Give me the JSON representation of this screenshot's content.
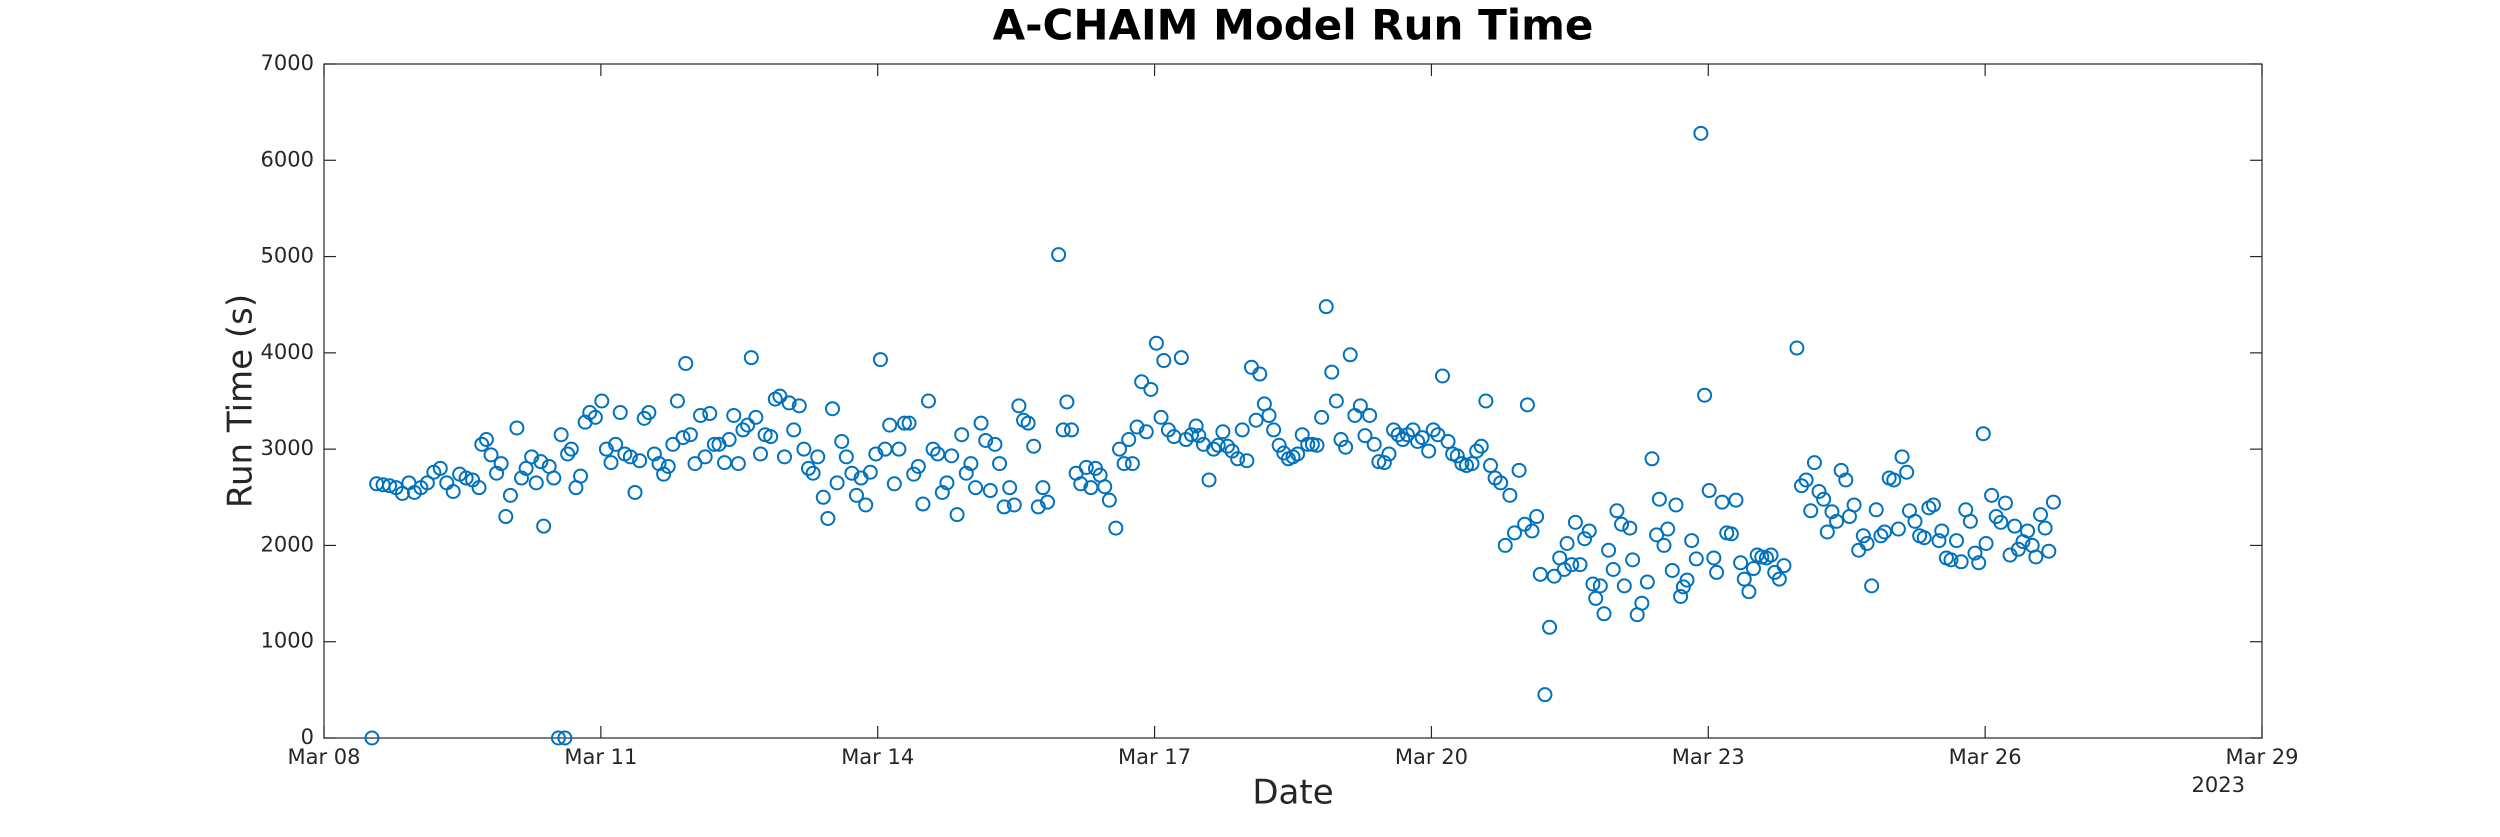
{
  "chart_data": {
    "type": "scatter",
    "title": "A-CHAIM Model Run Time",
    "x_label": "Date",
    "y_label": "Run Time (s)",
    "x_year_label": "2023",
    "color": "#0072bd",
    "xlim": [
      8,
      29
    ],
    "xticks": [
      {
        "value": 8,
        "label": "Mar 08"
      },
      {
        "value": 11,
        "label": "Mar 11"
      },
      {
        "value": 14,
        "label": "Mar 14"
      },
      {
        "value": 17,
        "label": "Mar 17"
      },
      {
        "value": 20,
        "label": "Mar 20"
      },
      {
        "value": 23,
        "label": "Mar 23"
      },
      {
        "value": 26,
        "label": "Mar 26"
      },
      {
        "value": 29,
        "label": "Mar 29"
      }
    ],
    "ylim": [
      0,
      7000
    ],
    "yticks": [
      0,
      1000,
      2000,
      3000,
      4000,
      5000,
      6000,
      7000
    ],
    "grid": false,
    "x": [
      8.52,
      8.57,
      8.64,
      8.71,
      8.78,
      8.85,
      8.92,
      8.98,
      9.05,
      9.12,
      9.19,
      9.26,
      9.33,
      9.4,
      9.47,
      9.54,
      9.61,
      9.68,
      9.71,
      9.76,
      9.81,
      9.87,
      9.92,
      9.97,
      10.02,
      10.09,
      10.14,
      10.19,
      10.25,
      10.3,
      10.35,
      10.38,
      10.44,
      10.49,
      10.54,
      10.57,
      10.61,
      10.64,
      10.68,
      10.73,
      10.78,
      10.83,
      10.88,
      10.94,
      11.01,
      11.06,
      11.11,
      11.16,
      11.21,
      11.26,
      11.32,
      11.37,
      11.42,
      11.47,
      11.52,
      11.58,
      11.63,
      11.68,
      11.73,
      11.78,
      11.83,
      11.89,
      11.92,
      11.97,
      12.02,
      12.08,
      12.13,
      12.18,
      12.23,
      12.28,
      12.34,
      12.39,
      12.44,
      12.49,
      12.54,
      12.59,
      12.63,
      12.68,
      12.73,
      12.78,
      12.84,
      12.89,
      12.94,
      12.99,
      13.04,
      13.09,
      13.15,
      13.2,
      13.25,
      13.3,
      13.35,
      13.41,
      13.46,
      13.51,
      13.56,
      13.61,
      13.66,
      13.72,
      13.77,
      13.82,
      13.87,
      13.92,
      13.98,
      14.03,
      14.08,
      14.13,
      14.18,
      14.23,
      14.29,
      14.34,
      14.39,
      14.44,
      14.49,
      14.55,
      14.6,
      14.65,
      14.7,
      14.75,
      14.8,
      14.86,
      14.91,
      14.96,
      15.01,
      15.06,
      15.12,
      15.17,
      15.22,
      15.27,
      15.32,
      15.37,
      15.43,
      15.48,
      15.53,
      15.58,
      15.63,
      15.69,
      15.74,
      15.79,
      15.84,
      15.96,
      16.01,
      16.05,
      16.1,
      16.15,
      16.2,
      16.26,
      16.31,
      16.36,
      16.41,
      16.46,
      16.51,
      16.58,
      16.62,
      16.67,
      16.72,
      16.76,
      16.81,
      16.86,
      16.91,
      16.96,
      17.02,
      17.07,
      17.1,
      17.15,
      17.21,
      17.29,
      17.34,
      17.4,
      17.45,
      17.48,
      17.53,
      17.59,
      17.64,
      17.69,
      17.74,
      17.79,
      17.84,
      17.9,
      17.95,
      18.0,
      18.05,
      18.1,
      18.14,
      18.19,
      18.24,
      18.29,
      18.35,
      18.4,
      18.45,
      18.5,
      18.55,
      18.6,
      18.66,
      18.71,
      18.76,
      18.81,
      18.86,
      18.92,
      18.97,
      19.02,
      19.07,
      19.12,
      19.17,
      19.23,
      19.28,
      19.33,
      19.38,
      19.43,
      19.49,
      19.54,
      19.59,
      19.64,
      19.69,
      19.74,
      19.8,
      19.85,
      19.9,
      19.97,
      20.02,
      20.07,
      20.12,
      20.18,
      20.23,
      20.28,
      20.33,
      20.38,
      20.44,
      20.49,
      20.54,
      20.59,
      20.64,
      20.69,
      20.75,
      20.8,
      20.85,
      20.9,
      20.95,
      21.01,
      21.04,
      21.09,
      21.14,
      21.18,
      21.23,
      21.28,
      21.33,
      21.39,
      21.44,
      21.47,
      21.52,
      21.56,
      21.61,
      21.66,
      21.71,
      21.75,
      21.78,
      21.83,
      21.87,
      21.92,
      21.97,
      22.01,
      22.06,
      22.09,
      22.15,
      22.18,
      22.23,
      22.28,
      22.34,
      22.39,
      22.44,
      22.47,
      22.52,
      22.56,
      22.61,
      22.65,
      22.7,
      22.73,
      22.77,
      22.82,
      22.87,
      22.92,
      22.96,
      23.01,
      23.06,
      23.09,
      23.15,
      23.2,
      23.25,
      23.3,
      23.35,
      23.39,
      23.44,
      23.49,
      23.53,
      23.58,
      23.63,
      23.68,
      23.72,
      23.77,
      23.82,
      23.96,
      24.01,
      24.06,
      24.11,
      24.15,
      24.2,
      24.25,
      24.29,
      24.34,
      24.39,
      24.44,
      24.49,
      24.53,
      24.58,
      24.63,
      24.68,
      24.72,
      24.77,
      24.82,
      24.87,
      24.91,
      24.96,
      25.01,
      25.06,
      25.1,
      25.15,
      25.18,
      25.24,
      25.29,
      25.34,
      25.39,
      25.44,
      25.5,
      25.53,
      25.58,
      25.63,
      25.69,
      25.74,
      25.79,
      25.84,
      25.89,
      25.93,
      25.98,
      26.01,
      26.07,
      26.12,
      26.17,
      26.22,
      26.27,
      26.32,
      26.36,
      26.41,
      26.46,
      26.51,
      26.55,
      26.6,
      26.65,
      26.69,
      26.74
    ],
    "values": [
      0,
      2640,
      2630,
      2620,
      2600,
      2540,
      2650,
      2550,
      2600,
      2650,
      2760,
      2800,
      2650,
      2560,
      2740,
      2700,
      2680,
      2600,
      3050,
      3100,
      2940,
      2750,
      2850,
      2300,
      2520,
      3220,
      2700,
      2800,
      2920,
      2650,
      2870,
      2200,
      2820,
      2700,
      0,
      3150,
      0,
      2950,
      3000,
      2600,
      2720,
      3280,
      3380,
      3330,
      3500,
      3000,
      2860,
      3050,
      3380,
      2950,
      2920,
      2550,
      2880,
      3320,
      3380,
      2950,
      2850,
      2740,
      2820,
      3050,
      3500,
      3120,
      3890,
      3150,
      2850,
      3350,
      2920,
      3370,
      3050,
      3050,
      2860,
      3100,
      3350,
      2850,
      3200,
      3250,
      3950,
      3330,
      2950,
      3150,
      3130,
      3520,
      3550,
      2920,
      3480,
      3200,
      3450,
      3000,
      2800,
      2750,
      2920,
      2500,
      2280,
      3420,
      2650,
      3080,
      2920,
      2750,
      2520,
      2700,
      2420,
      2760,
      2950,
      3930,
      3000,
      3250,
      2640,
      3000,
      3270,
      3270,
      2740,
      2820,
      2430,
      3500,
      3000,
      2950,
      2550,
      2650,
      2930,
      2320,
      3150,
      2750,
      2850,
      2600,
      3270,
      3090,
      2570,
      3050,
      2850,
      2400,
      2600,
      2420,
      3450,
      3300,
      3270,
      3030,
      2400,
      2600,
      2450,
      5020,
      3200,
      3490,
      3200,
      2750,
      2640,
      2810,
      2600,
      2800,
      2730,
      2610,
      2470,
      2180,
      3000,
      2850,
      3100,
      2850,
      3230,
      3700,
      3180,
      3620,
      4100,
      3330,
      3920,
      3200,
      3130,
      3950,
      3100,
      3150,
      3240,
      3140,
      3050,
      2680,
      3000,
      3040,
      3180,
      3030,
      2980,
      2900,
      3200,
      2880,
      3850,
      3300,
      3780,
      3470,
      3350,
      3200,
      3040,
      2960,
      2900,
      2920,
      2950,
      3150,
      3050,
      3050,
      3040,
      3330,
      4480,
      3800,
      3500,
      3100,
      3020,
      3980,
      3350,
      3450,
      3140,
      3350,
      3050,
      2870,
      2860,
      2950,
      3200,
      3150,
      3100,
      3150,
      3200,
      3080,
      3120,
      2980,
      3200,
      3150,
      3760,
      3080,
      2950,
      2930,
      2850,
      2830,
      2850,
      2980,
      3030,
      3500,
      2830,
      2700,
      2650,
      2000,
      2520,
      2130,
      2780,
      2220,
      3460,
      2150,
      2300,
      1700,
      450,
      1150,
      1680,
      1870,
      1750,
      2020,
      1800,
      2240,
      1800,
      2070,
      2150,
      1600,
      1450,
      1580,
      1290,
      1950,
      1750,
      2360,
      2220,
      1580,
      2180,
      1850,
      1280,
      1400,
      1620,
      2900,
      2110,
      2480,
      2000,
      2170,
      1740,
      2420,
      1470,
      1570,
      1640,
      2050,
      1860,
      6280,
      3560,
      2570,
      1870,
      1720,
      2450,
      2130,
      2120,
      2470,
      1820,
      1650,
      1520,
      1760,
      1900,
      1880,
      1870,
      1900,
      1720,
      1650,
      1790,
      4050,
      2620,
      2680,
      2360,
      2860,
      2560,
      2480,
      2140,
      2350,
      2250,
      2780,
      2680,
      2300,
      2420,
      1950,
      2100,
      2020,
      1580,
      2370,
      2100,
      2140,
      2700,
      2680,
      2170,
      2920,
      2760,
      2360,
      2250,
      2100,
      2080,
      2390,
      2420,
      2050,
      2150,
      1870,
      1850,
      2050,
      1830,
      2370,
      2250,
      1920,
      1820,
      3160,
      2020,
      2520,
      2300,
      2240,
      2440,
      1900,
      2200,
      1960,
      2040,
      2150,
      2000,
      1880,
      2320,
      2180,
      1940,
      2450
    ]
  }
}
